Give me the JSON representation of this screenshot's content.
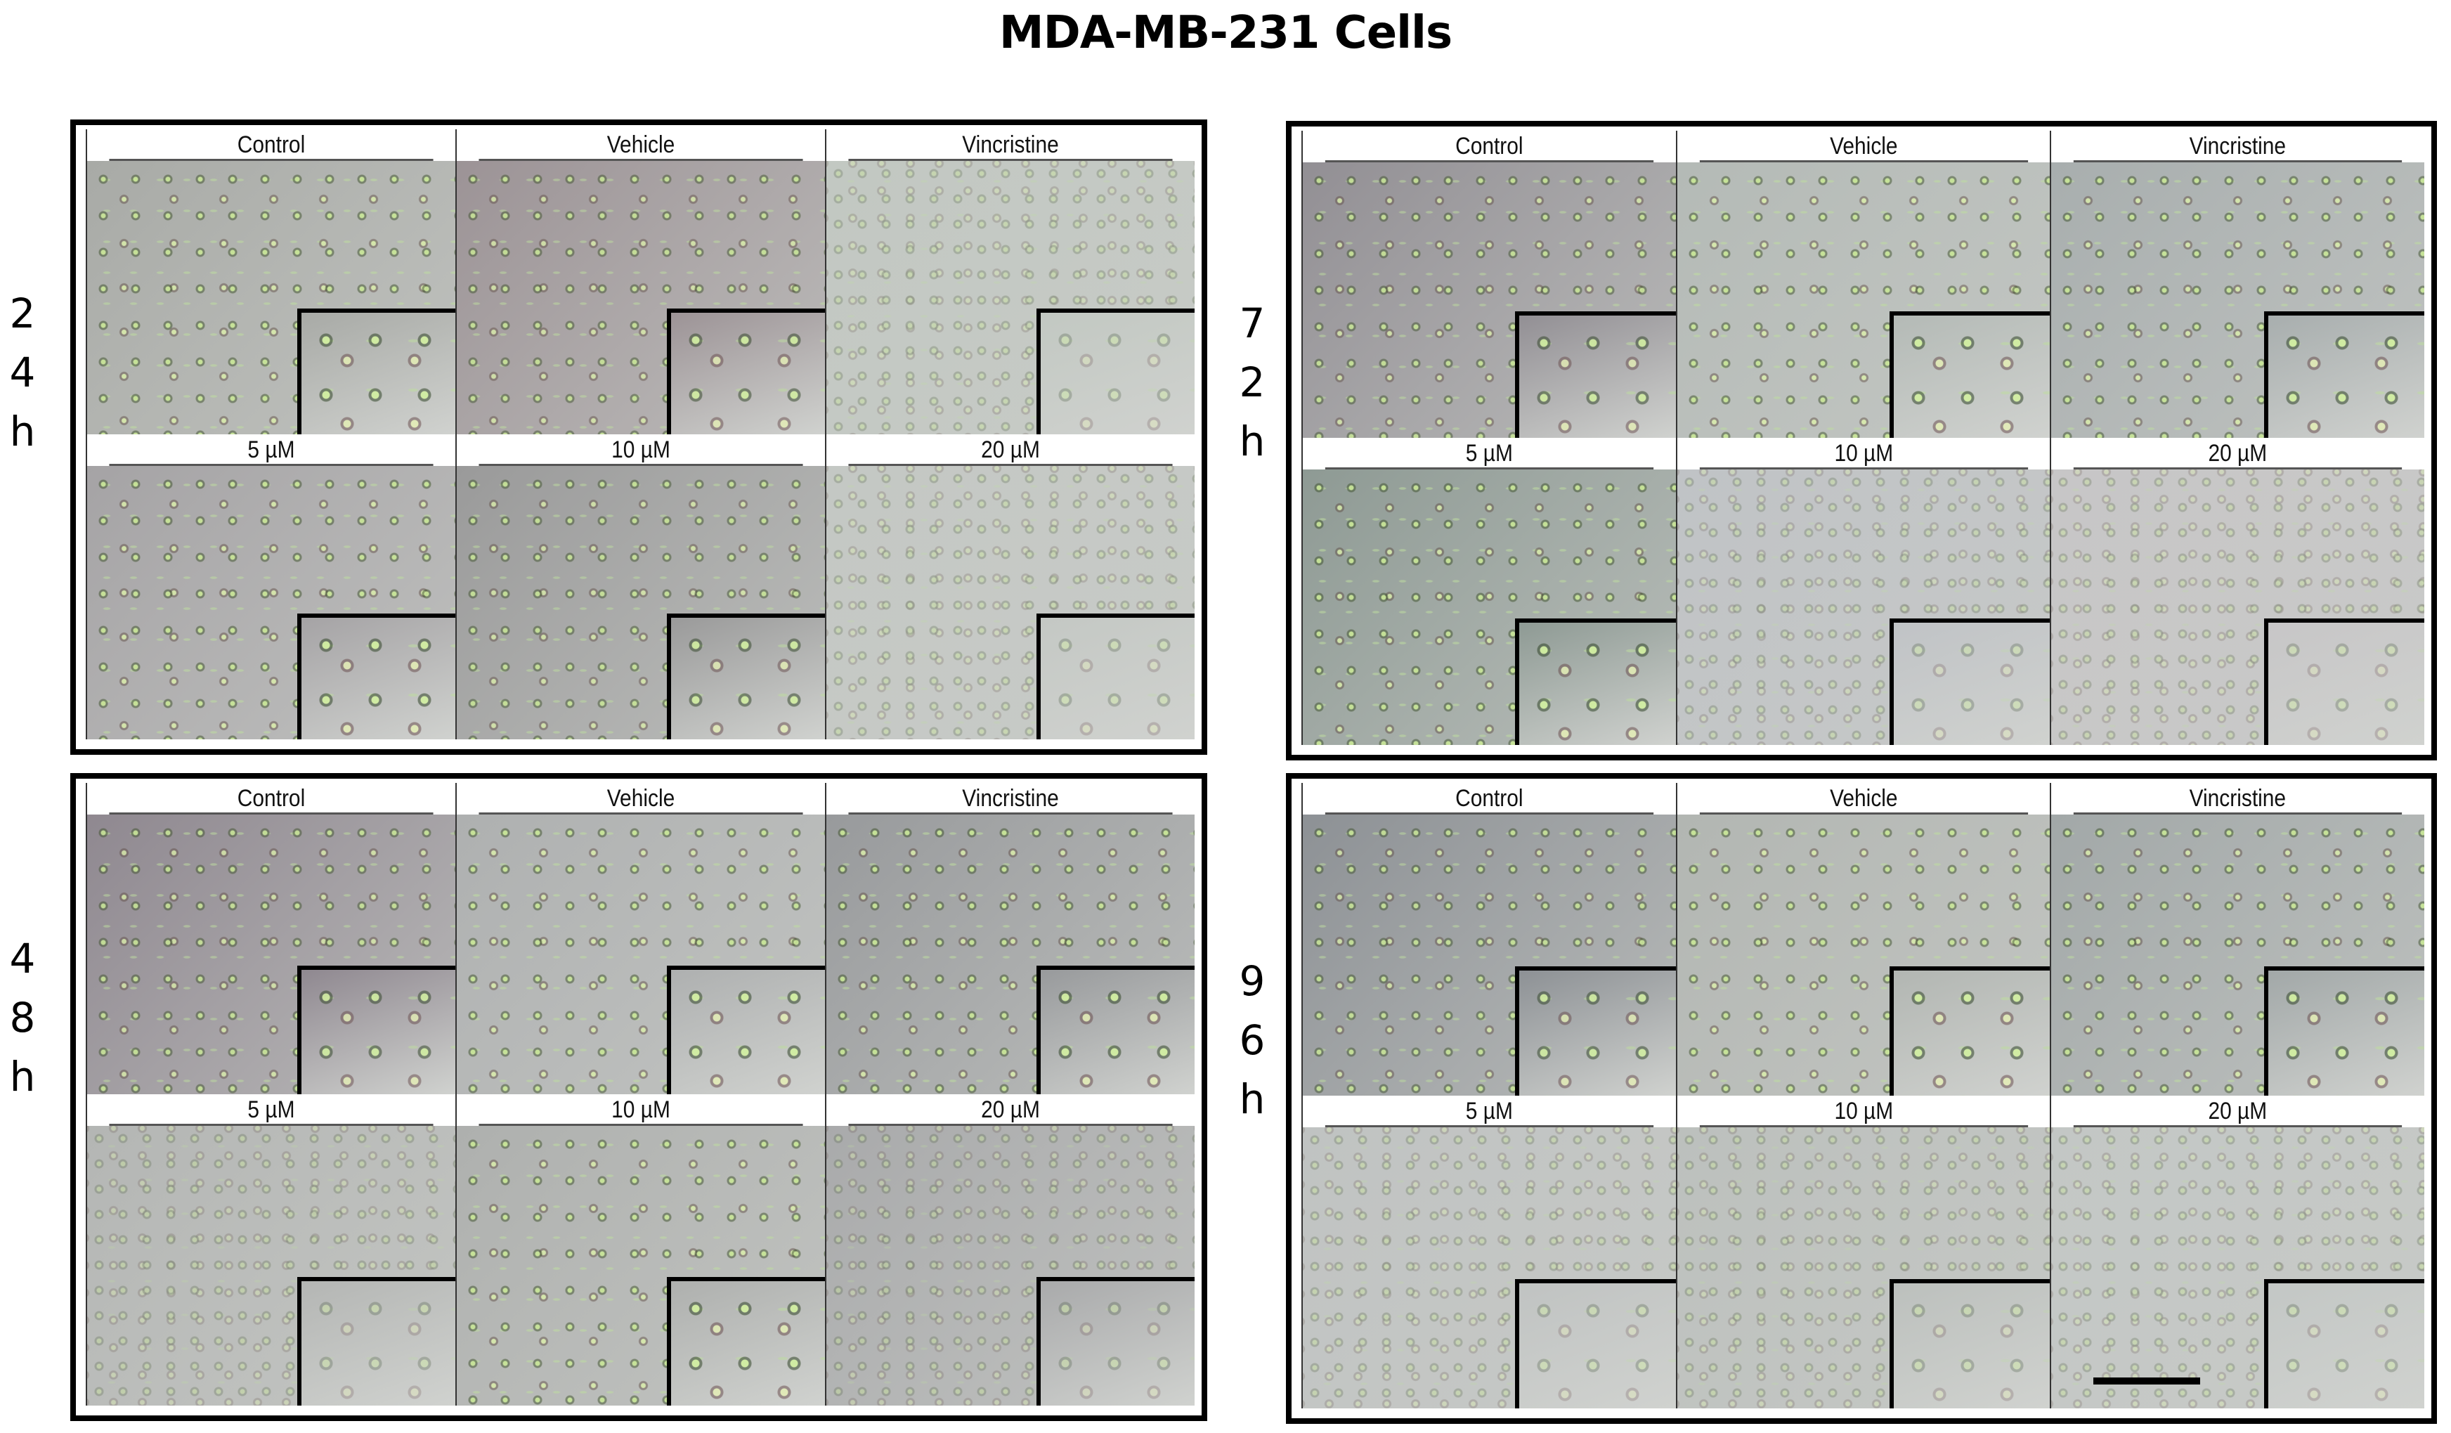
{
  "figure": {
    "title": "MDA-MB-231 Cells",
    "panels": [
      {
        "id": "24h",
        "time_label": [
          "2",
          "4",
          "h"
        ],
        "conditions": [
          {
            "label": "Control",
            "tone": "#a8aaa6",
            "density": "normal"
          },
          {
            "label": "Vehicle",
            "tone": "#9c9396",
            "density": "dense"
          },
          {
            "label": "Vincristine",
            "tone": "#c2c8c2",
            "density": "sparse"
          },
          {
            "label": "5 µM",
            "tone": "#a5a3a5",
            "density": "normal"
          },
          {
            "label": "10 µM",
            "tone": "#9a9a9a",
            "density": "dense"
          },
          {
            "label": "20 µM",
            "tone": "#c4c8c4",
            "density": "sparse"
          }
        ]
      },
      {
        "id": "72h",
        "time_label": [
          "7",
          "2",
          "h"
        ],
        "conditions": [
          {
            "label": "Control",
            "tone": "#928f94",
            "density": "dense"
          },
          {
            "label": "Vehicle",
            "tone": "#b4bab6",
            "density": "normal"
          },
          {
            "label": "Vincristine",
            "tone": "#a8aeae",
            "density": "normal"
          },
          {
            "label": "5 µM",
            "tone": "#8e9a94",
            "density": "normal"
          },
          {
            "label": "10 µM",
            "tone": "#c0c3c6",
            "density": "sparse"
          },
          {
            "label": "20 µM",
            "tone": "#c7c6c7",
            "density": "sparse"
          }
        ]
      },
      {
        "id": "48h",
        "time_label": [
          "4",
          "8",
          "h"
        ],
        "conditions": [
          {
            "label": "Control",
            "tone": "#8f8890",
            "density": "dense"
          },
          {
            "label": "Vehicle",
            "tone": "#aeb0b0",
            "density": "normal"
          },
          {
            "label": "Vincristine",
            "tone": "#989a9c",
            "density": "normal"
          },
          {
            "label": "5 µM",
            "tone": "#b4b6b4",
            "density": "sparse"
          },
          {
            "label": "10 µM",
            "tone": "#aeb0ae",
            "density": "normal"
          },
          {
            "label": "20 µM",
            "tone": "#a9aaab",
            "density": "sparse"
          }
        ]
      },
      {
        "id": "96h",
        "time_label": [
          "9",
          "6",
          "h"
        ],
        "conditions": [
          {
            "label": "Control",
            "tone": "#8d9195",
            "density": "dense"
          },
          {
            "label": "Vehicle",
            "tone": "#b2b6b2",
            "density": "normal"
          },
          {
            "label": "Vincristine",
            "tone": "#a2a8a8",
            "density": "normal"
          },
          {
            "label": "5 µM",
            "tone": "#c0c3c2",
            "density": "sparse"
          },
          {
            "label": "10 µM",
            "tone": "#bcc0bd",
            "density": "sparse"
          },
          {
            "label": "20 µM",
            "tone": "#c3c7c5",
            "density": "sparse"
          }
        ]
      }
    ],
    "scale_bar": {
      "visible": true,
      "panel": "96h",
      "condition": "20 µM"
    }
  }
}
